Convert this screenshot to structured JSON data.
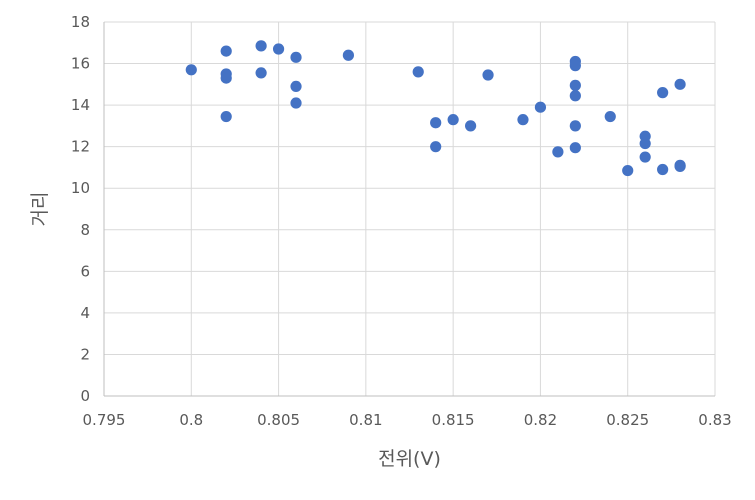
{
  "chart_data": {
    "type": "scatter",
    "title": "",
    "xlabel": "전위(V)",
    "ylabel": "거리",
    "xlim": [
      0.795,
      0.83
    ],
    "ylim": [
      0,
      18
    ],
    "x_ticks": [
      "0.795",
      "0.8",
      "0.805",
      "0.81",
      "0.815",
      "0.82",
      "0.825",
      "0.83"
    ],
    "y_ticks": [
      "0",
      "2",
      "4",
      "6",
      "8",
      "10",
      "12",
      "14",
      "16",
      "18"
    ],
    "grid": true,
    "legend": "none",
    "marker_color": "#4472c4",
    "series": [
      {
        "points": [
          [
            0.8,
            15.7
          ],
          [
            0.802,
            16.6
          ],
          [
            0.802,
            15.5
          ],
          [
            0.802,
            15.3
          ],
          [
            0.802,
            13.45
          ],
          [
            0.804,
            16.85
          ],
          [
            0.804,
            15.55
          ],
          [
            0.805,
            16.7
          ],
          [
            0.806,
            16.3
          ],
          [
            0.806,
            14.9
          ],
          [
            0.806,
            14.1
          ],
          [
            0.809,
            16.4
          ],
          [
            0.813,
            15.6
          ],
          [
            0.814,
            13.15
          ],
          [
            0.814,
            12.0
          ],
          [
            0.815,
            13.3
          ],
          [
            0.816,
            13.0
          ],
          [
            0.817,
            15.45
          ],
          [
            0.819,
            13.3
          ],
          [
            0.82,
            13.9
          ],
          [
            0.821,
            11.75
          ],
          [
            0.822,
            16.1
          ],
          [
            0.822,
            15.9
          ],
          [
            0.822,
            14.95
          ],
          [
            0.822,
            14.45
          ],
          [
            0.822,
            13.0
          ],
          [
            0.822,
            11.95
          ],
          [
            0.824,
            13.45
          ],
          [
            0.825,
            10.85
          ],
          [
            0.826,
            12.5
          ],
          [
            0.826,
            12.15
          ],
          [
            0.826,
            11.5
          ],
          [
            0.827,
            14.6
          ],
          [
            0.827,
            10.9
          ],
          [
            0.828,
            15.0
          ],
          [
            0.828,
            11.05
          ],
          [
            0.828,
            11.1
          ]
        ]
      }
    ]
  }
}
